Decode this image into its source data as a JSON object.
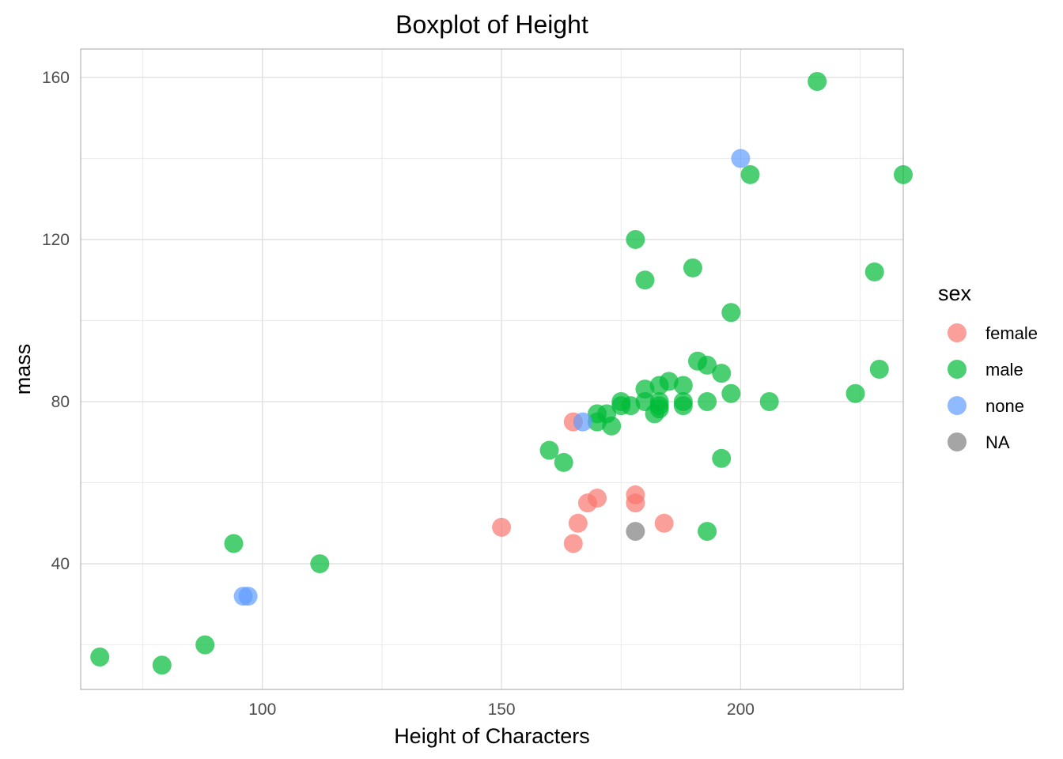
{
  "chart_data": {
    "type": "scatter",
    "title": "Boxplot of Height",
    "xlabel": "Height of Characters",
    "ylabel": "mass",
    "xlim": [
      62,
      234
    ],
    "ylim": [
      9,
      167
    ],
    "x_ticks": [
      100,
      150,
      200
    ],
    "y_ticks": [
      40,
      80,
      120,
      160
    ],
    "x_minor_ticks": [
      75,
      125,
      175,
      225
    ],
    "y_minor_ticks": [
      20,
      60,
      100,
      140
    ],
    "grid": true,
    "point_opacity": 0.7,
    "legend": {
      "title": "sex",
      "position": "right"
    },
    "series": [
      {
        "name": "female",
        "color": "#F8766D",
        "points": [
          {
            "x": 150,
            "y": 49
          },
          {
            "x": 165,
            "y": 75
          },
          {
            "x": 165,
            "y": 45
          },
          {
            "x": 166,
            "y": 50
          },
          {
            "x": 168,
            "y": 55
          },
          {
            "x": 170,
            "y": 56.2
          },
          {
            "x": 178,
            "y": 55
          },
          {
            "x": 178,
            "y": 57
          },
          {
            "x": 184,
            "y": 50
          }
        ]
      },
      {
        "name": "male",
        "color": "#00BA38",
        "points": [
          {
            "x": 66,
            "y": 17
          },
          {
            "x": 79,
            "y": 15
          },
          {
            "x": 88,
            "y": 20
          },
          {
            "x": 94,
            "y": 45
          },
          {
            "x": 112,
            "y": 40
          },
          {
            "x": 160,
            "y": 68
          },
          {
            "x": 163,
            "y": 65
          },
          {
            "x": 170,
            "y": 77
          },
          {
            "x": 170,
            "y": 75
          },
          {
            "x": 172,
            "y": 77
          },
          {
            "x": 173,
            "y": 74
          },
          {
            "x": 175,
            "y": 80
          },
          {
            "x": 175,
            "y": 79
          },
          {
            "x": 177,
            "y": 79
          },
          {
            "x": 178,
            "y": 120
          },
          {
            "x": 180,
            "y": 110
          },
          {
            "x": 180,
            "y": 83.1
          },
          {
            "x": 180,
            "y": 80
          },
          {
            "x": 182,
            "y": 77
          },
          {
            "x": 183,
            "y": 84
          },
          {
            "x": 183,
            "y": 80
          },
          {
            "x": 183,
            "y": 79
          },
          {
            "x": 183,
            "y": 78.2
          },
          {
            "x": 185,
            "y": 85
          },
          {
            "x": 188,
            "y": 84
          },
          {
            "x": 188,
            "y": 80
          },
          {
            "x": 188,
            "y": 79
          },
          {
            "x": 190,
            "y": 113
          },
          {
            "x": 191,
            "y": 90
          },
          {
            "x": 193,
            "y": 89
          },
          {
            "x": 193,
            "y": 80
          },
          {
            "x": 193,
            "y": 48
          },
          {
            "x": 196,
            "y": 87
          },
          {
            "x": 196,
            "y": 66
          },
          {
            "x": 198,
            "y": 102
          },
          {
            "x": 198,
            "y": 82
          },
          {
            "x": 202,
            "y": 136
          },
          {
            "x": 206,
            "y": 80
          },
          {
            "x": 216,
            "y": 159
          },
          {
            "x": 224,
            "y": 82
          },
          {
            "x": 228,
            "y": 112
          },
          {
            "x": 229,
            "y": 88
          },
          {
            "x": 234,
            "y": 136
          }
        ]
      },
      {
        "name": "none",
        "color": "#619CFF",
        "points": [
          {
            "x": 96,
            "y": 32
          },
          {
            "x": 97,
            "y": 32
          },
          {
            "x": 167,
            "y": 75
          },
          {
            "x": 200,
            "y": 140
          }
        ]
      },
      {
        "name": "NA",
        "color": "#7F7F7F",
        "points": [
          {
            "x": 178,
            "y": 48
          }
        ]
      }
    ]
  }
}
